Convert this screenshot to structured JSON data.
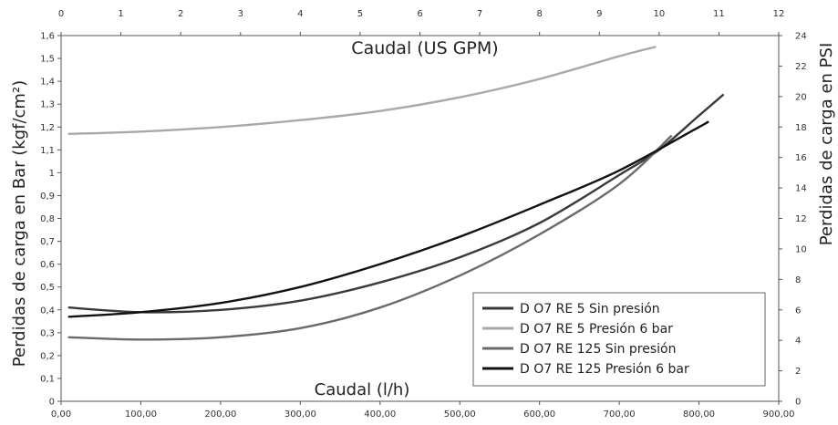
{
  "chart_data": {
    "type": "line",
    "x_bottom": {
      "label": "Caudal (l/h)",
      "range": [
        0,
        900
      ],
      "ticks": [
        "0,00",
        "100,00",
        "200,00",
        "300,00",
        "400,00",
        "500,00",
        "600,00",
        "700,00",
        "800,00",
        "900,00"
      ],
      "tick_values": [
        0,
        100,
        200,
        300,
        400,
        500,
        600,
        700,
        800,
        900
      ]
    },
    "x_top": {
      "label": "Caudal (US GPM)",
      "range": [
        0,
        12
      ],
      "ticks": [
        "0",
        "1",
        "2",
        "3",
        "4",
        "5",
        "6",
        "7",
        "8",
        "9",
        "10",
        "11",
        "12"
      ],
      "tick_values": [
        0,
        1,
        2,
        3,
        4,
        5,
        6,
        7,
        8,
        9,
        10,
        11,
        12
      ]
    },
    "y_left": {
      "label": "Perdidas de carga en Bar (kgf/cm²)",
      "range": [
        0,
        1.6
      ],
      "ticks": [
        "0",
        "0,1",
        "0,2",
        "0,3",
        "0,4",
        "0,5",
        "0,6",
        "0,7",
        "0,8",
        "0,9",
        "1",
        "1,1",
        "1,2",
        "1,3",
        "1,4",
        "1,5",
        "1,6"
      ],
      "tick_values": [
        0,
        0.1,
        0.2,
        0.3,
        0.4,
        0.5,
        0.6,
        0.7,
        0.8,
        0.9,
        1.0,
        1.1,
        1.2,
        1.3,
        1.4,
        1.5,
        1.6
      ]
    },
    "y_right": {
      "label": "Perdidas de carga en PSI",
      "range": [
        0,
        24
      ],
      "ticks": [
        "0",
        "2",
        "4",
        "6",
        "8",
        "10",
        "12",
        "14",
        "16",
        "18",
        "20",
        "22",
        "24"
      ],
      "tick_values": [
        0,
        2,
        4,
        6,
        8,
        10,
        12,
        14,
        16,
        18,
        20,
        22,
        24
      ]
    },
    "grid": {
      "horizontal": false,
      "vertical": false
    },
    "legend_position": "bottom-right",
    "series": [
      {
        "name": "D O7 RE 5 Sin presión",
        "color": "#3a3a3a",
        "points": [
          [
            10,
            0.41
          ],
          [
            100,
            0.39
          ],
          [
            200,
            0.4
          ],
          [
            300,
            0.44
          ],
          [
            400,
            0.52
          ],
          [
            500,
            0.63
          ],
          [
            600,
            0.78
          ],
          [
            700,
            0.99
          ],
          [
            750,
            1.1
          ],
          [
            800,
            1.25
          ],
          [
            830,
            1.34
          ]
        ]
      },
      {
        "name": "D O7 RE 5 Presión 6 bar",
        "color": "#a8a8a8",
        "points": [
          [
            10,
            1.17
          ],
          [
            100,
            1.18
          ],
          [
            200,
            1.2
          ],
          [
            300,
            1.23
          ],
          [
            400,
            1.27
          ],
          [
            500,
            1.33
          ],
          [
            600,
            1.41
          ],
          [
            700,
            1.51
          ],
          [
            745,
            1.55
          ]
        ]
      },
      {
        "name": "D O7 RE 125 Sin presión",
        "color": "#6a6a6a",
        "points": [
          [
            10,
            0.28
          ],
          [
            100,
            0.27
          ],
          [
            200,
            0.28
          ],
          [
            300,
            0.32
          ],
          [
            400,
            0.41
          ],
          [
            500,
            0.55
          ],
          [
            600,
            0.73
          ],
          [
            700,
            0.95
          ],
          [
            765,
            1.16
          ]
        ]
      },
      {
        "name": "D O7 RE 125 Presión 6 bar",
        "color": "#111111",
        "points": [
          [
            10,
            0.37
          ],
          [
            100,
            0.39
          ],
          [
            200,
            0.43
          ],
          [
            300,
            0.5
          ],
          [
            400,
            0.6
          ],
          [
            500,
            0.72
          ],
          [
            600,
            0.86
          ],
          [
            700,
            1.01
          ],
          [
            800,
            1.2
          ],
          [
            810,
            1.22
          ]
        ]
      }
    ]
  }
}
